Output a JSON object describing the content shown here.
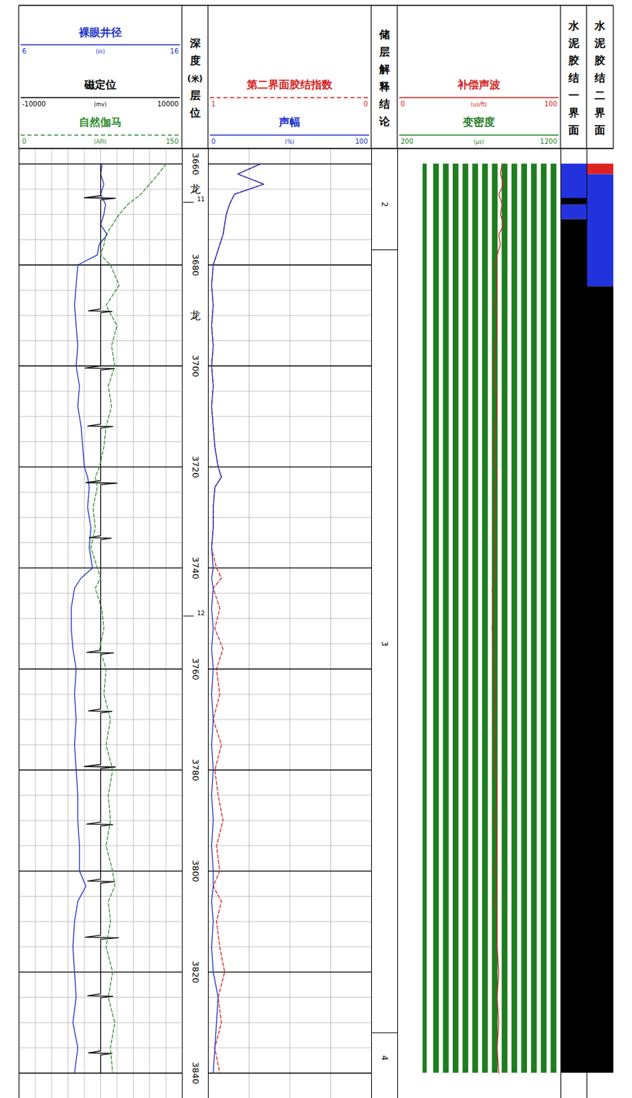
{
  "chart_data": {
    "type": "well_log",
    "ylim": [
      3657,
      3845
    ],
    "yticks": [
      3660,
      3680,
      3700,
      3720,
      3740,
      3760,
      3780,
      3800,
      3820,
      3840
    ],
    "grid": true,
    "depths": [
      3660,
      3662,
      3664,
      3666,
      3668,
      3670,
      3672,
      3674,
      3676,
      3678,
      3680,
      3684,
      3688,
      3692,
      3696,
      3700,
      3704,
      3708,
      3712,
      3716,
      3720,
      3722,
      3724,
      3728,
      3732,
      3736,
      3740,
      3742,
      3744,
      3748,
      3752,
      3756,
      3760,
      3765,
      3770,
      3775,
      3780,
      3785,
      3790,
      3795,
      3800,
      3803,
      3806,
      3810,
      3815,
      3820,
      3825,
      3830,
      3835,
      3840
    ],
    "tracks": [
      {
        "type": "curves",
        "curves": [
          {
            "name": "裸眼井径",
            "color": "#1a2fc8",
            "unit": "(in)",
            "xlim": [
              6,
              16
            ],
            "line_style": "solid",
            "values": [
              11.1,
              11.0,
              11.2,
              11.0,
              11.3,
              11.2,
              11.0,
              11.4,
              10.9,
              10.8,
              9.6,
              9.5,
              9.4,
              9.5,
              9.6,
              9.5,
              9.7,
              9.6,
              9.8,
              9.9,
              10.0,
              10.2,
              10.3,
              10.2,
              10.4,
              10.3,
              10.5,
              9.8,
              9.4,
              9.2,
              9.2,
              9.3,
              9.5,
              9.4,
              9.5,
              9.4,
              9.5,
              9.6,
              9.6,
              9.7,
              9.7,
              10.1,
              9.6,
              9.4,
              9.3,
              9.4,
              9.5,
              9.3,
              9.6,
              9.4
            ]
          },
          {
            "name": "磁定位",
            "color": "#000000",
            "unit": "(mv)",
            "xlim": [
              -10000,
              10000
            ],
            "line_style": "solid",
            "depth": [
              3660,
              3666.3,
              3666.7,
              3666.8,
              3667.1,
              3688.7,
              3689.1,
              3689.2,
              3689.5,
              3700.0,
              3700.4,
              3700.5,
              3700.8,
              3711.5,
              3711.9,
              3712.0,
              3712.3,
              3722.7,
              3723.1,
              3723.2,
              3723.5,
              3733.6,
              3734.0,
              3734.1,
              3734.4,
              3756.3,
              3756.7,
              3756.8,
              3757.1,
              3767.9,
              3768.3,
              3768.4,
              3768.7,
              3778.9,
              3779.3,
              3779.4,
              3779.7,
              3790.3,
              3790.7,
              3790.8,
              3791.1,
              3801.6,
              3802.0,
              3802.1,
              3802.4,
              3812.7,
              3813.1,
              3813.2,
              3813.5,
              3824.3,
              3824.7,
              3824.8,
              3825.1,
              3835.6,
              3836.0,
              3836.1,
              3836.4,
              3840
            ],
            "values": [
              0,
              0,
              -2000,
              1800,
              0,
              0,
              -1500,
              1400,
              0,
              0,
              -1900,
              1700,
              0,
              0,
              -1600,
              1500,
              0,
              0,
              -1800,
              2000,
              0,
              0,
              -1400,
              1300,
              0,
              0,
              -1700,
              1600,
              0,
              0,
              -1500,
              1400,
              0,
              0,
              -2000,
              1800,
              0,
              0,
              -1700,
              1500,
              0,
              0,
              -1600,
              1700,
              0,
              0,
              -1900,
              2200,
              0,
              0,
              -1600,
              1500,
              0,
              0,
              -1500,
              1400,
              0,
              0
            ]
          },
          {
            "name": "自然伽马",
            "color": "#2e8b2e",
            "unit": "(API)",
            "xlim": [
              0,
              150
            ],
            "line_style": "dashed",
            "values": [
              135,
              128,
              120,
              112,
              100,
              92,
              86,
              80,
              78,
              75,
              84,
              92,
              80,
              90,
              85,
              88,
              82,
              85,
              80,
              78,
              74,
              70,
              72,
              68,
              70,
              66,
              72,
              75,
              70,
              76,
              78,
              74,
              80,
              78,
              84,
              80,
              86,
              82,
              84,
              80,
              86,
              88,
              82,
              84,
              80,
              86,
              82,
              88,
              84,
              86
            ]
          }
        ]
      },
      {
        "type": "depth",
        "title": "深度(米)层位",
        "layers": [
          {
            "depth": 3665,
            "label": "龙"
          },
          {
            "depth": 3690,
            "label": "龙"
          }
        ],
        "markers": [
          {
            "depth": 3667.6,
            "label": "11"
          },
          {
            "depth": 3749.5,
            "label": "12"
          }
        ]
      },
      {
        "type": "curves",
        "curves": [
          {
            "name": "第二界面胶结指数",
            "color": "#d42020",
            "unit": "",
            "xlim": [
              1,
              0
            ],
            "line_style": "dashed",
            "values": [
              0.68,
              0.82,
              0.66,
              0.84,
              0.87,
              0.89,
              0.9,
              0.91,
              0.93,
              0.95,
              0.97,
              0.98,
              0.97,
              0.98,
              0.97,
              0.98,
              0.97,
              0.98,
              0.97,
              0.96,
              0.94,
              0.92,
              0.96,
              0.97,
              0.97,
              0.98,
              0.95,
              0.92,
              0.97,
              0.93,
              0.96,
              0.91,
              0.95,
              0.93,
              0.97,
              0.92,
              0.96,
              0.94,
              0.91,
              0.95,
              0.93,
              0.97,
              0.92,
              0.95,
              0.93,
              0.9,
              0.94,
              0.92,
              0.96,
              0.93
            ]
          },
          {
            "name": "声幅",
            "color": "#1a2fc8",
            "unit": "(%)",
            "xlim": [
              0,
              100
            ],
            "line_style": "solid",
            "values": [
              32,
              18,
              34,
              16,
              13,
              11,
              10,
              9,
              7,
              5,
              3,
              2,
              3,
              2,
              3,
              2,
              3,
              2,
              3,
              4,
              6,
              8,
              4,
              3,
              3,
              2,
              3,
              2,
              3,
              2,
              3,
              2,
              3,
              2,
              3,
              2,
              3,
              2,
              3,
              2,
              3,
              3,
              2,
              3,
              2,
              3,
              6,
              5,
              4,
              3
            ]
          }
        ]
      },
      {
        "type": "interpretation",
        "title": "储层解释结论",
        "boundaries": [
          3677,
          3832
        ],
        "zones": [
          {
            "depth": 3668,
            "label": "2"
          },
          {
            "depth": 3755,
            "label": "3"
          },
          {
            "depth": 3837,
            "label": "4"
          }
        ]
      },
      {
        "type": "curves",
        "curves": [
          {
            "name": "补偿声波",
            "color": "#d42020",
            "unit": "(us/ft)",
            "xlim": [
              0,
              100
            ],
            "line_style": "solid",
            "values": [
              64,
              63,
              65,
              62,
              64,
              63,
              65,
              62,
              63,
              61,
              60,
              61,
              60,
              61,
              60,
              59,
              60,
              61,
              60,
              59,
              60,
              61,
              59,
              60,
              59,
              60,
              59,
              60,
              58,
              59,
              58,
              59,
              59,
              60,
              59,
              60,
              60,
              61,
              60,
              61,
              60,
              61,
              60,
              61,
              61,
              62,
              61,
              62,
              61,
              62
            ]
          },
          {
            "name": "变密度",
            "color": "#1e7d1e",
            "unit": "(µs)",
            "xlim": [
              200,
              1200
            ],
            "type": "vdl",
            "bands": [
              [
                355,
                380
              ],
              [
                420,
                455
              ],
              [
                480,
                515
              ],
              [
                540,
                575
              ],
              [
                600,
                635
              ],
              [
                660,
                695
              ],
              [
                720,
                755
              ],
              [
                780,
                815
              ],
              [
                840,
                875
              ],
              [
                900,
                935
              ],
              [
                960,
                995
              ],
              [
                1020,
                1055
              ],
              [
                1080,
                1115
              ],
              [
                1140,
                1175
              ]
            ]
          }
        ]
      },
      {
        "type": "cement",
        "title": "水泥胶结一界面",
        "segments": [
          {
            "top": 3660,
            "bottom": 3666.8,
            "color": "#2233dd"
          },
          {
            "top": 3666.8,
            "bottom": 3668.1,
            "color": "#000000"
          },
          {
            "top": 3668.1,
            "bottom": 3671,
            "color": "#2233dd"
          },
          {
            "top": 3671,
            "bottom": 3840,
            "color": "#000000"
          }
        ]
      },
      {
        "type": "cement",
        "title": "水泥胶结二界面",
        "segments": [
          {
            "top": 3660,
            "bottom": 3662.1,
            "color": "#dd2222"
          },
          {
            "top": 3662.1,
            "bottom": 3684.3,
            "color": "#2233dd"
          },
          {
            "top": 3684.3,
            "bottom": 3840,
            "color": "#000000"
          }
        ]
      }
    ]
  }
}
